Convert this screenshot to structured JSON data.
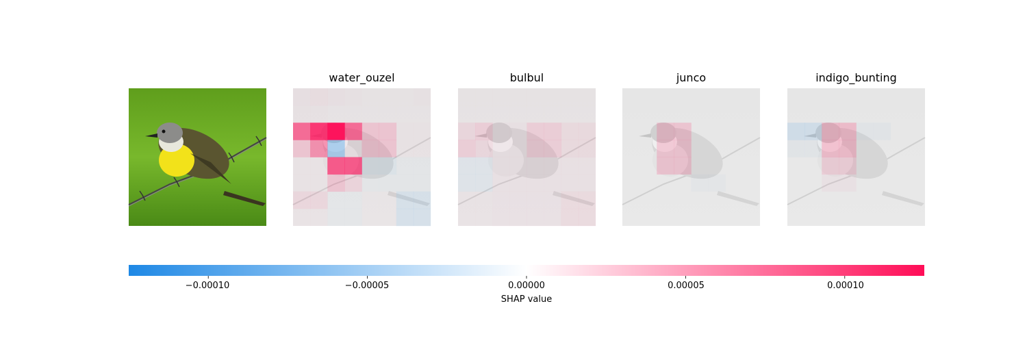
{
  "chart_data": {
    "type": "heatmap",
    "panels": [
      {
        "title": "",
        "kind": "input-image",
        "icon": "kingbird-on-barbed-wire-photo"
      },
      {
        "title": "water_ouzel",
        "kind": "shap-map",
        "grid": [
          [
            4e-06,
            6e-06,
            4e-06,
            3e-06,
            2e-06,
            2e-06,
            2e-06,
            3e-06
          ],
          [
            3e-06,
            3e-06,
            2e-06,
            2e-06,
            2e-06,
            2e-06,
            2e-06,
            2e-06
          ],
          [
            7e-05,
            0.0001,
            0.00012,
            7e-05,
            2e-05,
            2e-05,
            3e-06,
            3e-06
          ],
          [
            2e-05,
            5e-05,
            -4e-05,
            4e-06,
            2e-05,
            2e-05,
            3e-06,
            3e-06
          ],
          [
            3e-06,
            3e-06,
            8e-05,
            8e-05,
            -8e-06,
            -8e-06,
            -3e-06,
            -3e-06
          ],
          [
            3e-06,
            3e-06,
            2e-05,
            1.2e-05,
            -3e-06,
            -3e-06,
            -3e-06,
            -3e-06
          ],
          [
            1e-05,
            1e-05,
            -3e-06,
            -3e-06,
            2e-06,
            2e-06,
            -1.2e-05,
            -1.2e-05
          ],
          [
            3e-06,
            3e-06,
            -3e-06,
            -3e-06,
            2e-06,
            2e-06,
            -1.2e-05,
            -1.2e-05
          ]
        ]
      },
      {
        "title": "bulbul",
        "kind": "shap-map",
        "grid": [
          [
            2e-06,
            2e-06,
            2e-06,
            2e-06,
            2e-06,
            2e-06,
            2e-06,
            2e-06
          ],
          [
            2e-06,
            2e-06,
            2e-06,
            2e-06,
            2e-06,
            2e-06,
            2e-06,
            2e-06
          ],
          [
            1e-05,
            1.5e-05,
            4e-06,
            4e-06,
            1.5e-05,
            1.5e-05,
            8e-06,
            8e-06
          ],
          [
            1.5e-05,
            1e-05,
            4e-06,
            4e-06,
            1.5e-05,
            1.5e-05,
            8e-06,
            8e-06
          ],
          [
            -6e-06,
            -6e-06,
            4e-06,
            4e-06,
            4e-06,
            4e-06,
            4e-06,
            4e-06
          ],
          [
            -6e-06,
            -6e-06,
            4e-06,
            4e-06,
            4e-06,
            4e-06,
            4e-06,
            4e-06
          ],
          [
            3e-06,
            3e-06,
            4e-06,
            4e-06,
            4e-06,
            4e-06,
            8e-06,
            8e-06
          ],
          [
            3e-06,
            3e-06,
            4e-06,
            4e-06,
            4e-06,
            4e-06,
            8e-06,
            8e-06
          ]
        ]
      },
      {
        "title": "junco",
        "kind": "shap-map",
        "grid": [
          [
            0.0,
            0.0,
            0.0,
            0.0,
            0.0,
            0.0,
            0.0,
            0.0
          ],
          [
            0.0,
            0.0,
            0.0,
            0.0,
            0.0,
            0.0,
            0.0,
            0.0
          ],
          [
            0.0,
            0.0,
            2e-05,
            2e-05,
            0.0,
            0.0,
            0.0,
            0.0
          ],
          [
            0.0,
            0.0,
            2e-05,
            2e-05,
            0.0,
            0.0,
            0.0,
            0.0
          ],
          [
            0.0,
            0.0,
            2e-05,
            2e-05,
            0.0,
            0.0,
            0.0,
            0.0
          ],
          [
            0.0,
            0.0,
            0.0,
            0.0,
            -3e-06,
            -3e-06,
            0.0,
            0.0
          ],
          [
            0.0,
            0.0,
            0.0,
            0.0,
            0.0,
            0.0,
            0.0,
            0.0
          ],
          [
            0.0,
            0.0,
            0.0,
            0.0,
            0.0,
            0.0,
            0.0,
            0.0
          ]
        ]
      },
      {
        "title": "indigo_bunting",
        "kind": "shap-map",
        "grid": [
          [
            0.0,
            0.0,
            0.0,
            0.0,
            0.0,
            0.0,
            0.0,
            0.0
          ],
          [
            0.0,
            0.0,
            0.0,
            0.0,
            0.0,
            0.0,
            0.0,
            0.0
          ],
          [
            -1.5e-05,
            -1.5e-05,
            2.5e-05,
            2.5e-05,
            -4e-06,
            -4e-06,
            0.0,
            0.0
          ],
          [
            -4e-06,
            -4e-06,
            2.5e-05,
            2.5e-05,
            0.0,
            0.0,
            0.0,
            0.0
          ],
          [
            0.0,
            0.0,
            1.5e-05,
            1.5e-05,
            0.0,
            0.0,
            0.0,
            0.0
          ],
          [
            0.0,
            0.0,
            4e-06,
            4e-06,
            0.0,
            0.0,
            0.0,
            0.0
          ],
          [
            0.0,
            0.0,
            0.0,
            0.0,
            0.0,
            0.0,
            0.0,
            0.0
          ],
          [
            0.0,
            0.0,
            0.0,
            0.0,
            0.0,
            0.0,
            0.0,
            0.0
          ]
        ]
      }
    ],
    "colorbar": {
      "label": "SHAP value",
      "range": [
        -0.000125,
        0.000125
      ],
      "ticks": [
        {
          "value": -0.0001,
          "label": "−0.00010"
        },
        {
          "value": -5e-05,
          "label": "−0.00005"
        },
        {
          "value": 0.0,
          "label": "0.00000"
        },
        {
          "value": 5e-05,
          "label": "0.00005"
        },
        {
          "value": 0.0001,
          "label": "0.00010"
        }
      ],
      "colors": {
        "negative": "#1E88E5",
        "zero": "#FFFFFF",
        "positive": "#FF0D57"
      }
    }
  }
}
